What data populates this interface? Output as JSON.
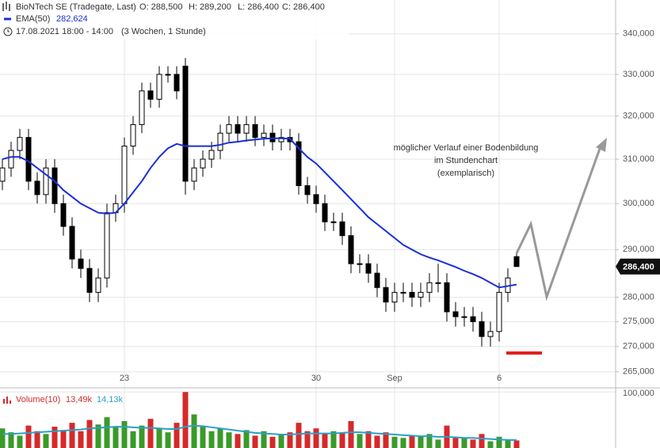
{
  "chart_data": {
    "type": "candlestick",
    "title": "BioNTech SE (Tradegate, Last)",
    "quote": [
      "O: 288,500",
      "H: 289,200",
      "L: 286,400",
      "C: 286,400"
    ],
    "date_range": "17.08.2021 18:00 - 14:00",
    "period": "(3 Wochen, 1 Stunde)",
    "categories": [
      null,
      null,
      null,
      null,
      null,
      null,
      null,
      null,
      null,
      null,
      null,
      null,
      null,
      null,
      "23",
      null,
      null,
      null,
      null,
      null,
      null,
      null,
      null,
      null,
      null,
      null,
      null,
      null,
      null,
      null,
      null,
      null,
      null,
      null,
      null,
      null,
      "30",
      null,
      null,
      null,
      null,
      null,
      null,
      null,
      null,
      "Sep",
      null,
      null,
      null,
      null,
      null,
      null,
      null,
      null,
      null,
      null,
      null,
      "6",
      null,
      null
    ],
    "open": [
      305000,
      308000,
      312000,
      315000,
      305000,
      302000,
      308000,
      300000,
      295000,
      288000,
      286000,
      281000,
      284000,
      298000,
      300000,
      313000,
      318000,
      326000,
      324000,
      330000,
      330000,
      332000,
      305000,
      308000,
      310000,
      312000,
      316000,
      318000,
      316000,
      318000,
      315000,
      316000,
      314000,
      315000,
      314000,
      304000,
      302000,
      300000,
      296000,
      296000,
      293000,
      287000,
      287000,
      285000,
      282000,
      279000,
      281000,
      281000,
      280000,
      281000,
      283000,
      283000,
      277000,
      276000,
      276000,
      275000,
      272000,
      273000,
      281000,
      288500
    ],
    "high": [
      310000,
      314000,
      317000,
      317000,
      307000,
      310000,
      310000,
      302000,
      297000,
      290000,
      288000,
      286000,
      300000,
      302000,
      315000,
      320000,
      328000,
      328000,
      332000,
      332000,
      332000,
      334000,
      310000,
      312000,
      314000,
      318000,
      320000,
      320000,
      320000,
      320000,
      318000,
      318000,
      317000,
      317000,
      316000,
      306000,
      304000,
      302000,
      298000,
      298000,
      295000,
      289000,
      289000,
      287000,
      284000,
      283000,
      283000,
      283000,
      283000,
      285000,
      287000,
      285000,
      279000,
      278000,
      278000,
      277000,
      275000,
      283000,
      286000,
      289200
    ],
    "low": [
      303000,
      306000,
      310000,
      303000,
      300000,
      300000,
      298000,
      293000,
      286000,
      284000,
      279000,
      279000,
      282000,
      296000,
      298000,
      311000,
      316000,
      322000,
      322000,
      328000,
      324000,
      302000,
      303000,
      306000,
      308000,
      310000,
      314000,
      314000,
      314000,
      313000,
      313000,
      312000,
      312000,
      312000,
      302000,
      300000,
      298000,
      294000,
      294000,
      291000,
      285000,
      285000,
      283000,
      280000,
      277000,
      277000,
      279000,
      278000,
      278000,
      279000,
      281000,
      275000,
      274000,
      274000,
      273000,
      270000,
      270000,
      271000,
      279000,
      286400
    ],
    "close": [
      308000,
      312000,
      315000,
      305000,
      302000,
      308000,
      300000,
      295000,
      288000,
      286000,
      281000,
      284000,
      298000,
      300000,
      313000,
      318000,
      326000,
      324000,
      330000,
      330000,
      326000,
      305000,
      308000,
      310000,
      312000,
      316000,
      318000,
      316000,
      318000,
      315000,
      316000,
      314000,
      315000,
      314000,
      304000,
      302000,
      300000,
      296000,
      296000,
      293000,
      287000,
      287000,
      285000,
      282000,
      279000,
      281000,
      281000,
      280000,
      281000,
      283000,
      283000,
      277000,
      276000,
      276000,
      275000,
      272000,
      273000,
      281000,
      284000,
      286400
    ],
    "up_color": "#ffffff",
    "down_color": "#000000",
    "log_scale": true,
    "ylim": [
      262200,
      348600
    ],
    "yticks": [
      {
        "value": 265000,
        "label": "265,000"
      },
      {
        "value": 270000,
        "label": "270,000"
      },
      {
        "value": 275000,
        "label": "275,000"
      },
      {
        "value": 280000,
        "label": "280,000"
      },
      {
        "value": 290000,
        "label": "290,000"
      },
      {
        "value": 300000,
        "label": "300,000"
      },
      {
        "value": 310000,
        "label": "310,000"
      },
      {
        "value": 320000,
        "label": "320,000"
      },
      {
        "value": 330000,
        "label": "330,000"
      },
      {
        "value": 340000,
        "label": "340,000"
      }
    ],
    "grid": true,
    "ema": {
      "name": "EMA(50)",
      "value_label": "282,624",
      "color": "#1a2fd6",
      "values": [
        310000,
        310500,
        310500,
        309500,
        308000,
        306500,
        305000,
        303000,
        301500,
        300000,
        299000,
        298000,
        297800,
        298000,
        300000,
        302500,
        305000,
        308000,
        310500,
        312500,
        313500,
        313000,
        313000,
        313000,
        313000,
        313300,
        313800,
        314000,
        314300,
        314500,
        314700,
        314800,
        314800,
        314700,
        312500,
        310500,
        309000,
        307000,
        305000,
        303000,
        301000,
        299000,
        297000,
        295500,
        294000,
        292500,
        291000,
        290000,
        289000,
        288300,
        287700,
        287000,
        286300,
        285500,
        284800,
        284000,
        283000,
        282000,
        282300,
        282624
      ]
    },
    "last_price": {
      "value": 286400,
      "label": "286,400"
    },
    "annotation": [
      "möglicher Verlauf einer Bodenbildung",
      "im Stundenchart",
      "(exemplarisch)"
    ],
    "volume": {
      "name": "Volume(10)",
      "value_label": "13,49k",
      "ma_label": "14,13k",
      "up_color": "#3a9a2a",
      "down_color": "#d42a2a",
      "ma_color": "#2aa0c8",
      "values": [
        35000,
        28000,
        22000,
        40000,
        30000,
        25000,
        38000,
        32000,
        45000,
        30000,
        50000,
        42000,
        55000,
        38000,
        48000,
        30000,
        40000,
        52000,
        35000,
        28000,
        45000,
        100000,
        60000,
        38000,
        30000,
        35000,
        28000,
        25000,
        32000,
        22000,
        30000,
        20000,
        25000,
        28000,
        45000,
        30000,
        35000,
        25000,
        30000,
        28000,
        48000,
        25000,
        30000,
        22000,
        28000,
        20000,
        18000,
        22000,
        20000,
        25000,
        15000,
        40000,
        20000,
        18000,
        15000,
        25000,
        12000,
        20000,
        15000,
        13490
      ],
      "ma_values": [
        25000,
        25000,
        26000,
        27000,
        28000,
        29000,
        30000,
        31000,
        32000,
        33000,
        35000,
        36000,
        37000,
        38000,
        38000,
        37000,
        36000,
        36000,
        35000,
        34000,
        34000,
        38000,
        40000,
        39000,
        37000,
        35000,
        33000,
        31000,
        29000,
        27000,
        26000,
        25000,
        24000,
        24000,
        25000,
        26000,
        26000,
        26000,
        26000,
        27000,
        28000,
        28000,
        27000,
        26000,
        25000,
        24000,
        23000,
        22000,
        21000,
        21000,
        20000,
        20000,
        19000,
        18000,
        18000,
        17000,
        16000,
        15000,
        14500,
        14130
      ],
      "ylim": [
        0,
        107400
      ],
      "yticks": [
        {
          "value": 100000,
          "label": "100,000"
        }
      ]
    }
  }
}
